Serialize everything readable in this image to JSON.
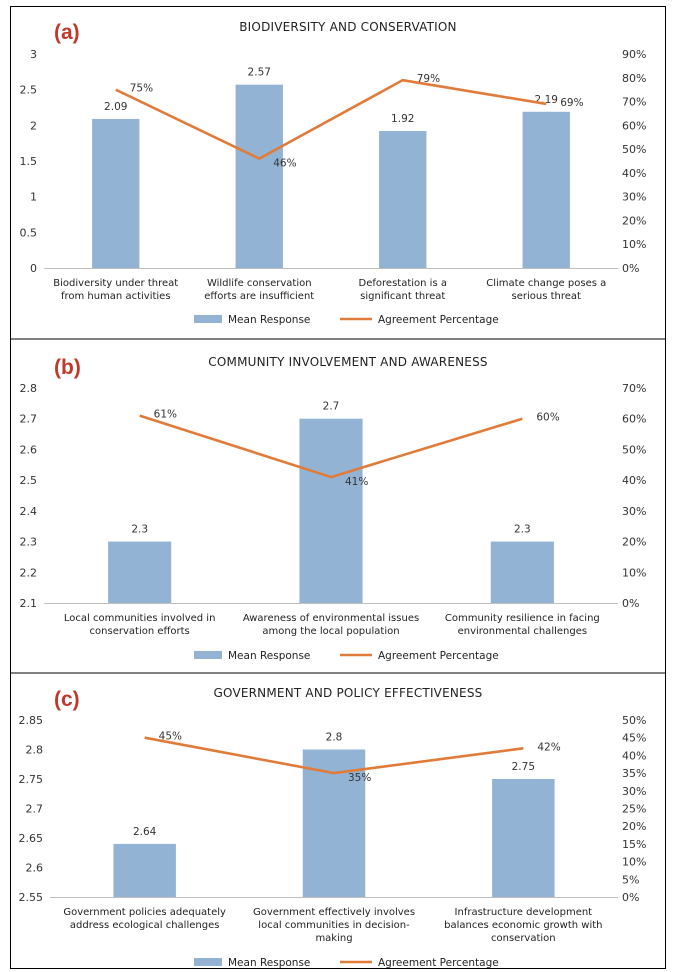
{
  "colors": {
    "bar": "#93b3d4",
    "line": "#e07b39",
    "axis": "#bfbfbf",
    "label_red": "#c0392b"
  },
  "legend": {
    "bar": "Mean Response",
    "line": "Agreement Percentage"
  },
  "chart_data": [
    {
      "type": "bar",
      "panel_label": "(a)",
      "title": "BIODIVERSITY AND CONSERVATION",
      "categories": [
        [
          "Biodiversity under threat",
          "from human activities"
        ],
        [
          "Wildlife conservation",
          "efforts are insufficient"
        ],
        [
          "Deforestation is a",
          "significant threat"
        ],
        [
          "Climate change poses a",
          "serious threat"
        ]
      ],
      "series": [
        {
          "name": "Mean Response",
          "type": "bar",
          "axis": "left",
          "values": [
            2.09,
            2.57,
            1.92,
            2.19
          ],
          "labels": [
            "2.09",
            "2.57",
            "1.92",
            "2.19"
          ]
        },
        {
          "name": "Agreement Percentage",
          "type": "line",
          "axis": "right",
          "values": [
            75,
            46,
            79,
            69
          ],
          "labels": [
            "75%",
            "46%",
            "79%",
            "69%"
          ]
        }
      ],
      "y_left": {
        "min": 0,
        "max": 3,
        "ticks": [
          "0",
          "0.5",
          "1",
          "1.5",
          "2",
          "2.5",
          "3"
        ]
      },
      "y_right": {
        "min": 0,
        "max": 90,
        "ticks": [
          "0%",
          "10%",
          "20%",
          "30%",
          "40%",
          "50%",
          "60%",
          "70%",
          "80%",
          "90%"
        ]
      },
      "legend_position": "bottom"
    },
    {
      "type": "bar",
      "panel_label": "(b)",
      "title": "COMMUNITY INVOLVEMENT AND AWARENESS",
      "categories": [
        [
          "Local communities involved in",
          "conservation efforts"
        ],
        [
          "Awareness of environmental issues",
          "among the local population"
        ],
        [
          "Community resilience in facing",
          "environmental challenges"
        ]
      ],
      "series": [
        {
          "name": "Mean Response",
          "type": "bar",
          "axis": "left",
          "values": [
            2.3,
            2.7,
            2.3
          ],
          "labels": [
            "2.3",
            "2.7",
            "2.3"
          ]
        },
        {
          "name": "Agreement Percentage",
          "type": "line",
          "axis": "right",
          "values": [
            61,
            41,
            60
          ],
          "labels": [
            "61%",
            "41%",
            "60%"
          ]
        }
      ],
      "y_left": {
        "min": 2.1,
        "max": 2.8,
        "ticks": [
          "2.1",
          "2.2",
          "2.3",
          "2.4",
          "2.5",
          "2.6",
          "2.7",
          "2.8"
        ]
      },
      "y_right": {
        "min": 0,
        "max": 70,
        "ticks": [
          "0%",
          "10%",
          "20%",
          "30%",
          "40%",
          "50%",
          "60%",
          "70%"
        ]
      },
      "legend_position": "bottom"
    },
    {
      "type": "bar",
      "panel_label": "(c)",
      "title": "GOVERNMENT AND POLICY EFFECTIVENESS",
      "categories": [
        [
          "Government policies adequately",
          "address ecological challenges"
        ],
        [
          "Government effectively involves",
          "local communities in decision-",
          "making"
        ],
        [
          "Infrastructure development",
          "balances economic growth with",
          "conservation"
        ]
      ],
      "series": [
        {
          "name": "Mean Response",
          "type": "bar",
          "axis": "left",
          "values": [
            2.64,
            2.8,
            2.75
          ],
          "labels": [
            "2.64",
            "2.8",
            "2.75"
          ]
        },
        {
          "name": "Agreement Percentage",
          "type": "line",
          "axis": "right",
          "values": [
            45,
            35,
            42
          ],
          "labels": [
            "45%",
            "35%",
            "42%"
          ]
        }
      ],
      "y_left": {
        "min": 2.55,
        "max": 2.85,
        "ticks": [
          "2.55",
          "2.6",
          "2.65",
          "2.7",
          "2.75",
          "2.8",
          "2.85"
        ]
      },
      "y_right": {
        "min": 0,
        "max": 50,
        "ticks": [
          "0%",
          "5%",
          "10%",
          "15%",
          "20%",
          "25%",
          "30%",
          "35%",
          "40%",
          "45%",
          "50%"
        ]
      },
      "legend_position": "bottom"
    }
  ]
}
